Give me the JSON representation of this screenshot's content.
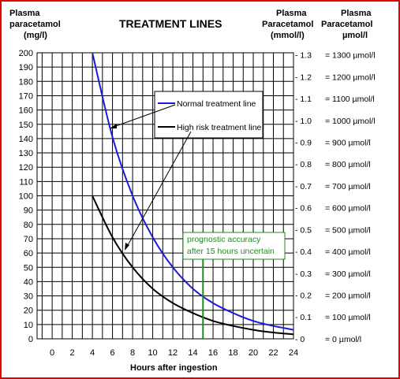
{
  "chart_data": {
    "type": "line",
    "title": "TREATMENT LINES",
    "xlabel": "Hours after ingestion",
    "ylabel": [
      "Plasma",
      "paracetamol",
      "(mg/l)"
    ],
    "y2label": [
      "Plasma",
      "Paracetamol",
      "(mmol/l)"
    ],
    "y3label": [
      "Plasma",
      "Paracetamol",
      "µmol/l"
    ],
    "xlim": [
      -1.5,
      24
    ],
    "ylim": [
      0,
      200
    ],
    "x_ticks": [
      0,
      2,
      4,
      6,
      8,
      10,
      12,
      14,
      16,
      18,
      20,
      22,
      24
    ],
    "y_ticks": [
      0,
      10,
      20,
      30,
      40,
      50,
      60,
      70,
      80,
      90,
      100,
      110,
      120,
      130,
      140,
      150,
      160,
      170,
      180,
      190,
      200
    ],
    "y2_ticks": [
      {
        "label": "- 1.3",
        "mgl": 198.5
      },
      {
        "label": "- 1.2",
        "mgl": 183.2
      },
      {
        "label": "- 1.1",
        "mgl": 168.0
      },
      {
        "label": "- 1.0",
        "mgl": 152.7
      },
      {
        "label": "- 0.9",
        "mgl": 137.4
      },
      {
        "label": "- 0.8",
        "mgl": 122.2
      },
      {
        "label": "- 0.7",
        "mgl": 106.9
      },
      {
        "label": "- 0.6",
        "mgl": 91.6
      },
      {
        "label": "- 0.5",
        "mgl": 76.4
      },
      {
        "label": "- 0.4",
        "mgl": 61.1
      },
      {
        "label": "- 0.3",
        "mgl": 45.8
      },
      {
        "label": "- 0.2",
        "mgl": 30.5
      },
      {
        "label": "- 0.1",
        "mgl": 15.3
      },
      {
        "label": "- 0",
        "mgl": 0
      }
    ],
    "y3_ticks": [
      {
        "label": "= 1300 µmol/l",
        "mgl": 198.5
      },
      {
        "label": "= 1200 µmol/l",
        "mgl": 183.2
      },
      {
        "label": "= 1100 µmol/l",
        "mgl": 168.0
      },
      {
        "label": "= 1000 µmol/l",
        "mgl": 152.7
      },
      {
        "label": "= 900 µmol/l",
        "mgl": 137.4
      },
      {
        "label": "= 800 µmol/l",
        "mgl": 122.2
      },
      {
        "label": "= 700 µmol/l",
        "mgl": 106.9
      },
      {
        "label": "= 600 µmol/l",
        "mgl": 91.6
      },
      {
        "label": "= 500 µmol/l",
        "mgl": 76.4
      },
      {
        "label": "= 400 µmol/l",
        "mgl": 61.1
      },
      {
        "label": "= 300 µmol/l",
        "mgl": 45.8
      },
      {
        "label": "= 200 µmol/l",
        "mgl": 30.5
      },
      {
        "label": "= 100 µmol/l",
        "mgl": 15.3
      },
      {
        "label": "= 0 µmol/l",
        "mgl": 0
      }
    ],
    "grid": true,
    "series": [
      {
        "name": "Normal treatment line",
        "color": "#1a1adc",
        "x": [
          4,
          6,
          8,
          10,
          12,
          14,
          16,
          18,
          20,
          22,
          24
        ],
        "y": [
          200,
          141,
          100,
          71,
          50,
          35,
          25,
          18,
          12.5,
          9,
          6.3
        ]
      },
      {
        "name": "High risk treatment line",
        "color": "#000000",
        "x": [
          4,
          6,
          8,
          10,
          12,
          14,
          16,
          18,
          20,
          22,
          24
        ],
        "y": [
          100,
          71,
          50,
          35,
          25,
          18,
          12.5,
          9,
          6.3,
          4.4,
          3.2
        ]
      }
    ],
    "annotation": {
      "text": [
        "prognostic accuracy",
        "after 15 hours uncertain"
      ],
      "x": 15,
      "color": "#1e8c1e"
    }
  }
}
